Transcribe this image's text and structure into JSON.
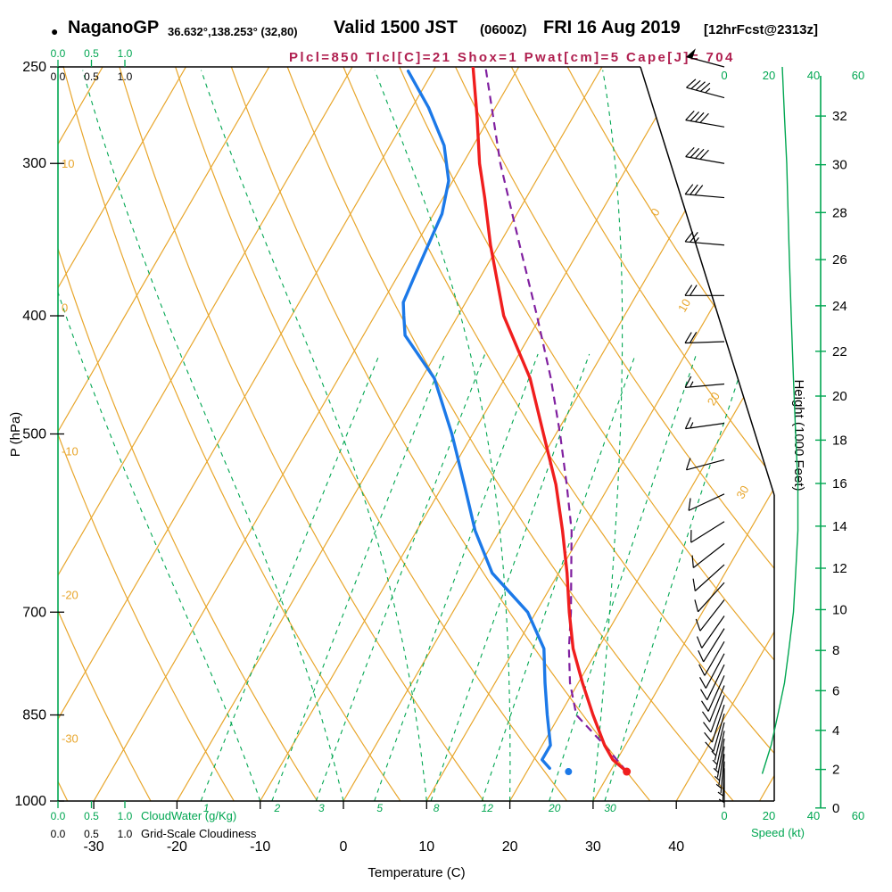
{
  "header": {
    "bullet": "●",
    "station": "NaganoGP",
    "coords": "36.632°,138.253° (32,80)",
    "valid": "Valid 1500 JST",
    "zulu": "(0600Z)",
    "date": "FRI 16 Aug 2019",
    "fcst": "[12hrFcst@2313z]",
    "params": "Plcl=850 Tlcl[C]=21 Shox=1 Pwat[cm]=5 Cape[J]= 704"
  },
  "axes": {
    "pressure_label": "P (hPa)",
    "pressure_ticks": [
      250,
      300,
      400,
      500,
      700,
      850,
      1000
    ],
    "temp_label": "Temperature (C)",
    "temp_ticks": [
      -30,
      -20,
      -10,
      0,
      10,
      20,
      30,
      40
    ],
    "height_label": "Height (1000 Feet)",
    "height_ticks": [
      0,
      2,
      4,
      6,
      8,
      10,
      12,
      14,
      16,
      18,
      20,
      22,
      24,
      26,
      28,
      30,
      32
    ],
    "speed_label": "Speed (kt)",
    "speed_ticks": [
      0,
      20,
      40,
      60
    ],
    "cloudwater_scale": [
      "0.0",
      "0.5",
      "1.0"
    ],
    "cloudwater_label": "CloudWater (g/Kg)",
    "cloudiness_scale": [
      "0.0",
      "0.5",
      "1.0"
    ],
    "cloudiness_label": "Grid-Scale Cloudiness"
  },
  "colors": {
    "grid_orange": "#E8A62C",
    "green": "#00A651",
    "temp_red": "#F01E1E",
    "dewpoint_blue": "#1C79E8",
    "parcel_purple": "#8020A0",
    "params_text": "#B02050",
    "frame_black": "#000000"
  },
  "chart_data": {
    "type": "skewt_log_p_sounding",
    "title": "NaganoGP sounding valid 1500 JST (0600Z) FRI 16 Aug 2019",
    "pressure_range_hpa": [
      1000,
      250
    ],
    "surface_temp_axis_range_c": [
      -35,
      50
    ],
    "indices": {
      "Plcl": 850,
      "Tlcl_C": 21,
      "Shox": 1,
      "Pwat_cm": 5,
      "Cape_J": 704
    },
    "isotherms_c": [
      -100,
      -90,
      -80,
      -70,
      -60,
      -50,
      -40,
      -30,
      -20,
      -10,
      0,
      10,
      20,
      30,
      40,
      50
    ],
    "isotherm_left_edge_labels": [
      10,
      0,
      -10,
      -20,
      -30
    ],
    "isotherm_diagonal_labels": [
      0,
      10,
      20,
      30
    ],
    "dry_adiabats_theta_k": [
      240,
      250,
      260,
      270,
      280,
      290,
      300,
      310,
      320,
      330,
      340,
      350,
      360,
      370
    ],
    "mixing_ratio_g_kg": [
      1,
      2,
      3,
      5,
      8,
      12,
      20,
      30
    ],
    "moist_adiabats_t0_c": [
      -10,
      0,
      10,
      20,
      30
    ],
    "temperature_profile": [
      [
        946,
        32
      ],
      [
        925,
        29.5
      ],
      [
        900,
        27.5
      ],
      [
        850,
        24
      ],
      [
        800,
        20.5
      ],
      [
        750,
        17
      ],
      [
        700,
        14
      ],
      [
        650,
        11
      ],
      [
        600,
        7.5
      ],
      [
        550,
        3.5
      ],
      [
        500,
        -1.5
      ],
      [
        450,
        -7
      ],
      [
        400,
        -14.5
      ],
      [
        350,
        -21
      ],
      [
        320,
        -25
      ],
      [
        300,
        -28
      ],
      [
        275,
        -31.5
      ],
      [
        250,
        -35.5
      ]
    ],
    "dewpoint_profile": [
      [
        940,
        22.5
      ],
      [
        925,
        21
      ],
      [
        900,
        21
      ],
      [
        850,
        18.5
      ],
      [
        800,
        16
      ],
      [
        750,
        13.5
      ],
      [
        700,
        9
      ],
      [
        650,
        2
      ],
      [
        600,
        -3
      ],
      [
        550,
        -7.5
      ],
      [
        500,
        -12.5
      ],
      [
        450,
        -18.5
      ],
      [
        415,
        -25
      ],
      [
        400,
        -26.5
      ],
      [
        390,
        -27.5
      ],
      [
        370,
        -28
      ],
      [
        350,
        -28.5
      ],
      [
        330,
        -29
      ],
      [
        310,
        -30.5
      ],
      [
        290,
        -33.5
      ],
      [
        270,
        -38
      ],
      [
        252,
        -43
      ]
    ],
    "parcel_profile": [
      [
        946,
        32
      ],
      [
        900,
        27.5
      ],
      [
        850,
        22
      ],
      [
        800,
        19
      ],
      [
        750,
        16.5
      ],
      [
        700,
        14.2
      ],
      [
        650,
        11.5
      ],
      [
        600,
        8.6
      ],
      [
        550,
        4.8
      ],
      [
        500,
        0.5
      ],
      [
        450,
        -4.5
      ],
      [
        400,
        -10.5
      ],
      [
        350,
        -17.5
      ],
      [
        300,
        -25.5
      ],
      [
        250,
        -34
      ]
    ],
    "surface_dots": {
      "temperature": [
        946,
        32
      ],
      "dewpoint": [
        946,
        25
      ]
    },
    "wind_barbs_p_dir_kt": [
      [
        250,
        285,
        50
      ],
      [
        265,
        285,
        45
      ],
      [
        280,
        280,
        40
      ],
      [
        300,
        280,
        40
      ],
      [
        320,
        275,
        30
      ],
      [
        350,
        275,
        25
      ],
      [
        385,
        270,
        20
      ],
      [
        420,
        268,
        20
      ],
      [
        455,
        265,
        15
      ],
      [
        490,
        262,
        15
      ],
      [
        525,
        255,
        12
      ],
      [
        560,
        245,
        10
      ],
      [
        590,
        238,
        10
      ],
      [
        615,
        232,
        10
      ],
      [
        640,
        228,
        10
      ],
      [
        662,
        222,
        10
      ],
      [
        684,
        218,
        10
      ],
      [
        705,
        215,
        10
      ],
      [
        722,
        212,
        10
      ],
      [
        740,
        210,
        10
      ],
      [
        757,
        208,
        10
      ],
      [
        773,
        206,
        10
      ],
      [
        789,
        204,
        10
      ],
      [
        804,
        202,
        10
      ],
      [
        819,
        200,
        10
      ],
      [
        834,
        198,
        10
      ],
      [
        848,
        196,
        10
      ],
      [
        862,
        194,
        8
      ],
      [
        876,
        192,
        8
      ],
      [
        889,
        190,
        7
      ],
      [
        902,
        188,
        6
      ],
      [
        915,
        185,
        5
      ],
      [
        928,
        182,
        5
      ],
      [
        940,
        180,
        5
      ]
    ],
    "wind_speed_profile_p_kt": [
      [
        950,
        17
      ],
      [
        900,
        21
      ],
      [
        850,
        24
      ],
      [
        800,
        27
      ],
      [
        750,
        29
      ],
      [
        700,
        31
      ],
      [
        650,
        32
      ],
      [
        600,
        33
      ],
      [
        550,
        33
      ],
      [
        500,
        32
      ],
      [
        450,
        31
      ],
      [
        400,
        30
      ],
      [
        350,
        29
      ],
      [
        300,
        28
      ],
      [
        275,
        27
      ],
      [
        250,
        26
      ]
    ]
  }
}
